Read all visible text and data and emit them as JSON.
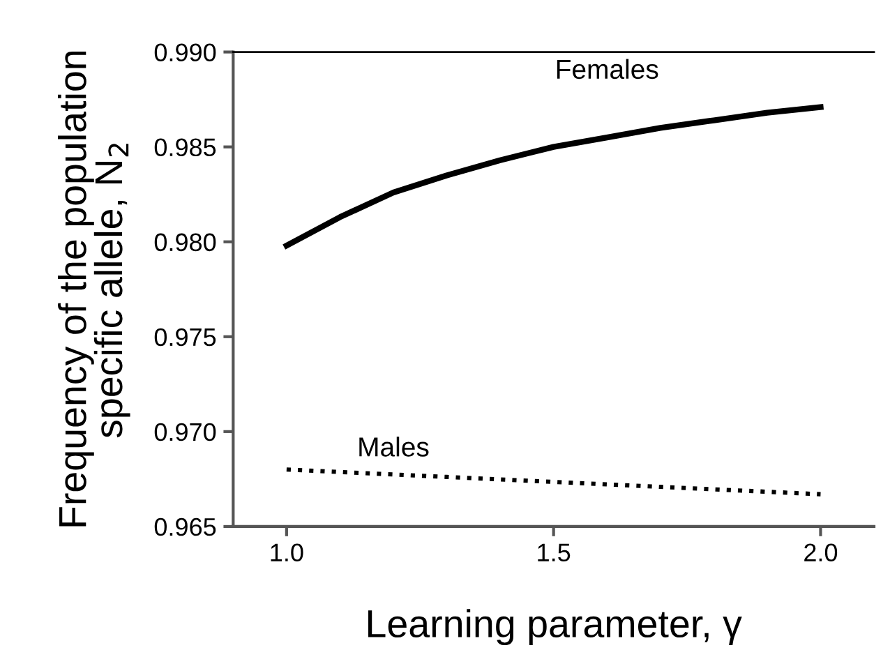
{
  "chart_data": {
    "type": "line",
    "xlabel": "Learning parameter, γ",
    "ylabel": "Frequency of the population\nspecific allele, N$_{2}$",
    "x": [
      1.0,
      1.1,
      1.2,
      1.3,
      1.4,
      1.5,
      1.6,
      1.7,
      1.8,
      1.9,
      2.0
    ],
    "series": [
      {
        "name": "Females",
        "color": "#000000",
        "line_style": "solid",
        "values": [
          0.9798,
          0.9813,
          0.9826,
          0.9835,
          0.9843,
          0.985,
          0.9855,
          0.986,
          0.9864,
          0.9868,
          0.9871
        ]
      },
      {
        "name": "Males",
        "color": "#000000",
        "line_style": "dotted",
        "values": [
          0.968,
          0.96787,
          0.96774,
          0.96761,
          0.96748,
          0.96735,
          0.96722,
          0.96709,
          0.96696,
          0.96683,
          0.9667
        ]
      }
    ],
    "xlim": [
      0.9,
      2.1
    ],
    "ylim": [
      0.965,
      0.99
    ],
    "xticks": [
      {
        "value": 1.0,
        "label": "1.0"
      },
      1.5,
      {
        "value": 2.0,
        "label": "2.0"
      }
    ],
    "yticks": [
      {
        "value": 0.965,
        "label": "0.965"
      },
      {
        "value": 0.97,
        "label": "0.970"
      },
      {
        "value": 0.975,
        "label": "0.975"
      },
      {
        "value": 0.98,
        "label": "0.980"
      },
      {
        "value": 0.985,
        "label": "0.985"
      },
      {
        "value": 0.99,
        "label": "0.990"
      }
    ],
    "grid": false,
    "legend": false
  }
}
